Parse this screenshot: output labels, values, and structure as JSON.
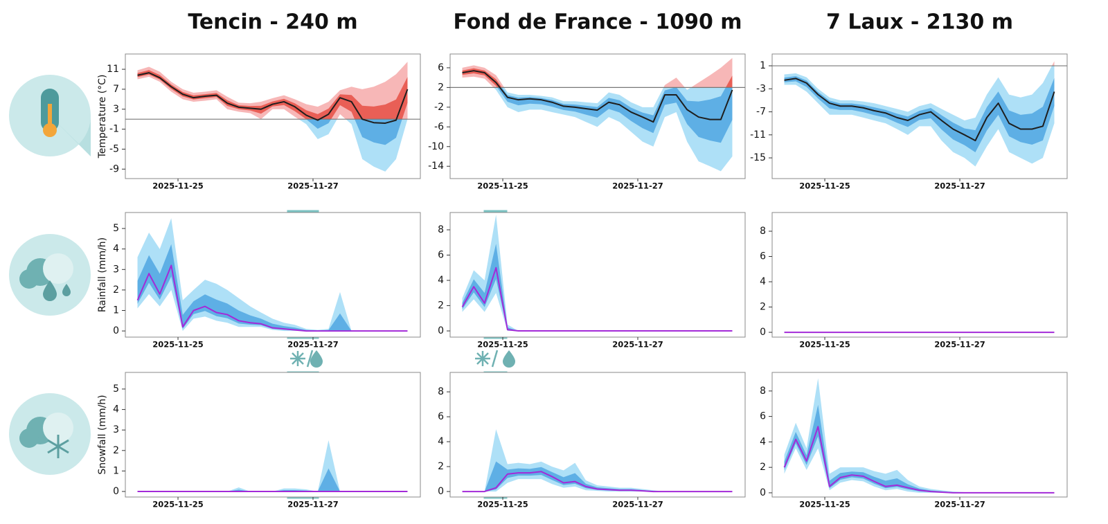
{
  "chart_data": [
    {
      "type": "line",
      "title": "Tencin - 240 m",
      "ylabel": "Temperature (°C)",
      "x": [
        24.4,
        24.57,
        24.73,
        24.9,
        25.07,
        25.23,
        25.4,
        25.57,
        25.73,
        25.9,
        26.07,
        26.23,
        26.4,
        26.57,
        26.73,
        26.9,
        27.07,
        27.23,
        27.4,
        27.57,
        27.73,
        27.9,
        28.07,
        28.23,
        28.4
      ],
      "median": [
        9.8,
        10.3,
        9.3,
        7.5,
        6,
        5.3,
        5.6,
        5.8,
        4.2,
        3.4,
        3.2,
        3,
        4,
        4.5,
        3.5,
        1.8,
        0.8,
        2,
        5.3,
        4.5,
        1,
        0.3,
        0.2,
        0.8,
        7
      ],
      "band_low": [
        9,
        9.5,
        8.5,
        6.5,
        5,
        4.5,
        4.7,
        5,
        3,
        2.5,
        2.2,
        1,
        3,
        3,
        1.5,
        0,
        -3,
        -2,
        2,
        0,
        -7,
        -8.5,
        -9.5,
        -7,
        1
      ],
      "band_high": [
        10.8,
        11.5,
        10.5,
        8.5,
        7,
        6.3,
        6.5,
        6.8,
        5.5,
        4.3,
        4.2,
        4.5,
        5.2,
        5.8,
        5,
        4,
        3.5,
        4.5,
        6.8,
        7.5,
        7,
        7.5,
        8.5,
        10,
        12.5
      ],
      "hline": 1,
      "xlim": [
        24.22,
        28.59
      ],
      "ylim": [
        -10.9,
        14.06
      ],
      "xticks": [
        {
          "value": 25,
          "label": "2025-11-25"
        },
        {
          "value": 27,
          "label": "2025-11-27"
        }
      ],
      "yticks": [
        11,
        7,
        3,
        -1,
        -5,
        -9
      ],
      "color": "#1e1e1e",
      "band_color": "#aee0f7",
      "inner_color": "#4aa3e0",
      "band_color_above": "#f7b7b7",
      "inner_color_above": "#e5483d"
    },
    {
      "type": "line",
      "title": "Fond de France - 1090 m",
      "x": [
        24.4,
        24.57,
        24.73,
        24.9,
        25.07,
        25.23,
        25.4,
        25.57,
        25.73,
        25.9,
        26.07,
        26.23,
        26.4,
        26.57,
        26.73,
        26.9,
        27.07,
        27.23,
        27.4,
        27.57,
        27.73,
        27.9,
        28.07,
        28.23,
        28.4
      ],
      "median": [
        5,
        5.4,
        5,
        3,
        0,
        -0.5,
        -0.3,
        -0.5,
        -1,
        -1.8,
        -2,
        -2.3,
        -2.6,
        -1,
        -1.5,
        -3,
        -4,
        -5,
        0.5,
        0.5,
        -2.5,
        -4,
        -4.5,
        -4.5,
        1.5
      ],
      "band_low": [
        4,
        4.2,
        3.8,
        1.5,
        -2,
        -3,
        -2.5,
        -2.5,
        -3,
        -3.5,
        -4,
        -5,
        -6,
        -4,
        -5,
        -7,
        -9,
        -10,
        -4,
        -3,
        -9,
        -13,
        -14,
        -15,
        -12
      ],
      "band_high": [
        6,
        6.5,
        6,
        4.5,
        1,
        0.5,
        0.5,
        0.3,
        0,
        -0.8,
        -0.8,
        -1,
        -1.2,
        1,
        0.5,
        -1,
        -2,
        -2,
        2.5,
        4,
        1.5,
        3,
        4.5,
        6,
        8
      ],
      "hline": 2,
      "xlim": [
        24.22,
        28.59
      ],
      "ylim": [
        -16.5,
        8.8
      ],
      "xticks": [
        {
          "value": 25,
          "label": "2025-11-25"
        },
        {
          "value": 27,
          "label": "2025-11-27"
        }
      ],
      "yticks": [
        6,
        2,
        -2,
        -6,
        -10,
        -14
      ],
      "color": "#1e1e1e",
      "band_color": "#aee0f7",
      "inner_color": "#4aa3e0",
      "band_color_above": "#f7b7b7",
      "inner_color_above": "#e5483d"
    },
    {
      "type": "line",
      "title": "7 Laux - 2130 m",
      "x": [
        24.4,
        24.57,
        24.73,
        24.9,
        25.07,
        25.23,
        25.4,
        25.57,
        25.73,
        25.9,
        26.07,
        26.23,
        26.4,
        26.57,
        26.73,
        26.9,
        27.07,
        27.23,
        27.4,
        27.57,
        27.73,
        27.9,
        28.07,
        28.23,
        28.4
      ],
      "median": [
        -1.5,
        -1.2,
        -2,
        -4,
        -5.5,
        -6,
        -6,
        -6.3,
        -6.8,
        -7.2,
        -8,
        -8.5,
        -7.5,
        -7,
        -8.5,
        -10,
        -11,
        -12,
        -8,
        -5.5,
        -9,
        -10,
        -10,
        -9.5,
        -3.5
      ],
      "band_low": [
        -2.3,
        -2.3,
        -3.5,
        -5.5,
        -7.5,
        -7.5,
        -7.5,
        -8,
        -8.5,
        -9,
        -10,
        -11,
        -9.5,
        -9.5,
        -12,
        -14,
        -15,
        -16.5,
        -13,
        -10,
        -14,
        -15,
        -16,
        -15,
        -9
      ],
      "band_high": [
        -0.5,
        -0.3,
        -1,
        -3,
        -4.5,
        -5,
        -5,
        -5.2,
        -5.5,
        -6,
        -6.5,
        -7,
        -6,
        -5.5,
        -6.5,
        -7.5,
        -8.5,
        -8,
        -4,
        -1,
        -4,
        -4.5,
        -4,
        -2,
        1.8
      ],
      "hline": 1,
      "xlim": [
        24.22,
        28.59
      ],
      "ylim": [
        -18.6,
        3.05
      ],
      "xticks": [
        {
          "value": 25,
          "label": "2025-11-25"
        },
        {
          "value": 27,
          "label": "2025-11-27"
        }
      ],
      "yticks": [
        1,
        -3,
        -7,
        -11,
        -15
      ],
      "color": "#1e1e1e",
      "band_color": "#aee0f7",
      "inner_color": "#4aa3e0",
      "band_color_above": "#f7b7b7",
      "inner_color_above": "#e5483d"
    },
    {
      "type": "line",
      "ylabel": "Rainfall (mm/h)",
      "x": [
        24.4,
        24.57,
        24.73,
        24.9,
        25.07,
        25.23,
        25.4,
        25.57,
        25.73,
        25.9,
        26.07,
        26.23,
        26.4,
        26.57,
        26.73,
        26.9,
        27.07,
        27.23,
        27.4,
        27.57,
        27.73,
        27.9,
        28.07,
        28.23,
        28.4
      ],
      "median": [
        1.5,
        2.8,
        1.8,
        3.2,
        0.2,
        1.0,
        1.2,
        0.9,
        0.8,
        0.5,
        0.4,
        0.35,
        0.15,
        0.1,
        0.05,
        0,
        0,
        0,
        0,
        0,
        0,
        0,
        0,
        0,
        0
      ],
      "band_low": [
        1.1,
        1.8,
        1.2,
        2,
        0,
        0.6,
        0.7,
        0.5,
        0.4,
        0.2,
        0.2,
        0.2,
        0.05,
        0,
        0,
        0,
        0,
        0,
        0,
        0,
        0,
        0,
        0,
        0,
        0
      ],
      "band_high": [
        3.6,
        4.8,
        4,
        5.5,
        1.5,
        2,
        2.5,
        2.3,
        2,
        1.6,
        1.2,
        0.9,
        0.6,
        0.4,
        0.3,
        0.1,
        0.05,
        0.1,
        1.9,
        0,
        0,
        0,
        0,
        0,
        0
      ],
      "xlim": [
        24.22,
        28.59
      ],
      "ylim": [
        -0.3,
        5.78
      ],
      "xticks": [
        {
          "value": 25,
          "label": "2025-11-25"
        },
        {
          "value": 27,
          "label": "2025-11-27"
        }
      ],
      "yticks": [
        0,
        1,
        2,
        3,
        4,
        5
      ],
      "color": "#a32ad8",
      "band_color": "#aee0f7",
      "inner_color": "#4aa3e0"
    },
    {
      "type": "line",
      "x": [
        24.4,
        24.57,
        24.73,
        24.9,
        25.07,
        25.23,
        25.4,
        25.57,
        25.73,
        25.9,
        26.07,
        26.23,
        26.4,
        26.57,
        26.73,
        26.9,
        27.07,
        27.23,
        27.4,
        27.57,
        27.73,
        27.9,
        28.07,
        28.23,
        28.4
      ],
      "median": [
        1.9,
        3.5,
        2.2,
        5,
        0.1,
        0,
        0,
        0,
        0,
        0,
        0,
        0,
        0,
        0,
        0,
        0,
        0,
        0,
        0,
        0,
        0,
        0,
        0,
        0,
        0
      ],
      "band_low": [
        1.5,
        2.5,
        1.5,
        3,
        0,
        0,
        0,
        0,
        0,
        0,
        0,
        0,
        0,
        0,
        0,
        0,
        0,
        0,
        0,
        0,
        0,
        0,
        0,
        0,
        0
      ],
      "band_high": [
        2.6,
        4.8,
        4,
        9.2,
        0.5,
        0,
        0,
        0,
        0,
        0,
        0,
        0,
        0,
        0,
        0,
        0,
        0,
        0,
        0,
        0,
        0,
        0,
        0,
        0,
        0
      ],
      "xlim": [
        24.22,
        28.59
      ],
      "ylim": [
        -0.49,
        9.37
      ],
      "xticks": [
        {
          "value": 25,
          "label": "2025-11-25"
        },
        {
          "value": 27,
          "label": "2025-11-27"
        }
      ],
      "yticks": [
        0,
        2,
        4,
        6,
        8
      ],
      "color": "#a32ad8",
      "band_color": "#aee0f7",
      "inner_color": "#4aa3e0"
    },
    {
      "type": "line",
      "x": [
        24.4,
        24.57,
        24.73,
        24.9,
        25.07,
        25.23,
        25.4,
        25.57,
        25.73,
        25.9,
        26.07,
        26.23,
        26.4,
        26.57,
        26.73,
        26.9,
        27.07,
        27.23,
        27.4,
        27.57,
        27.73,
        27.9,
        28.07,
        28.23,
        28.4
      ],
      "median": [
        0,
        0,
        0,
        0,
        0,
        0,
        0,
        0,
        0,
        0,
        0,
        0,
        0,
        0,
        0,
        0,
        0,
        0,
        0,
        0,
        0,
        0,
        0,
        0,
        0
      ],
      "xlim": [
        24.22,
        28.59
      ],
      "ylim": [
        -0.38,
        9.48
      ],
      "xticks": [
        {
          "value": 25,
          "label": "2025-11-25"
        },
        {
          "value": 27,
          "label": "2025-11-27"
        }
      ],
      "yticks": [
        0,
        2,
        4,
        6,
        8
      ],
      "color": "#a32ad8"
    },
    {
      "type": "line",
      "ylabel": "Snowfall (mm/h)",
      "x": [
        24.4,
        24.57,
        24.73,
        24.9,
        25.07,
        25.23,
        25.4,
        25.57,
        25.73,
        25.9,
        26.07,
        26.23,
        26.4,
        26.57,
        26.73,
        26.9,
        27.07,
        27.23,
        27.4,
        27.57,
        27.73,
        27.9,
        28.07,
        28.23,
        28.4
      ],
      "median": [
        0,
        0,
        0,
        0,
        0,
        0,
        0,
        0,
        0,
        0,
        0,
        0,
        0,
        0,
        0,
        0,
        0,
        0,
        0,
        0,
        0,
        0,
        0,
        0,
        0
      ],
      "band_low": [
        0,
        0,
        0,
        0,
        0,
        0,
        0,
        0,
        0,
        0,
        0,
        0,
        0,
        0,
        0,
        0,
        0,
        0,
        0,
        0,
        0,
        0,
        0,
        0,
        0
      ],
      "band_high": [
        0,
        0,
        0,
        0,
        0,
        0,
        0,
        0,
        0,
        0.2,
        0,
        0,
        0,
        0.15,
        0.15,
        0.1,
        0,
        2.5,
        0,
        0,
        0,
        0,
        0,
        0,
        0
      ],
      "xlim": [
        24.22,
        28.59
      ],
      "ylim": [
        -0.27,
        5.81
      ],
      "xticks": [
        {
          "value": 25,
          "label": "2025-11-25"
        },
        {
          "value": 27,
          "label": "2025-11-27"
        }
      ],
      "yticks": [
        0,
        1,
        2,
        3,
        4,
        5
      ],
      "color": "#a32ad8",
      "band_color": "#aee0f7",
      "inner_color": "#4aa3e0"
    },
    {
      "type": "line",
      "x": [
        24.4,
        24.57,
        24.73,
        24.9,
        25.07,
        25.23,
        25.4,
        25.57,
        25.73,
        25.9,
        26.07,
        26.23,
        26.4,
        26.57,
        26.73,
        26.9,
        27.07,
        27.23,
        27.4,
        27.57,
        27.73,
        27.9,
        28.07,
        28.23,
        28.4
      ],
      "median": [
        0,
        0,
        0,
        0.3,
        1.4,
        1.5,
        1.5,
        1.6,
        1.2,
        0.7,
        0.8,
        0.4,
        0.2,
        0.15,
        0.1,
        0.1,
        0.05,
        0,
        0,
        0,
        0,
        0,
        0,
        0,
        0
      ],
      "band_low": [
        0,
        0,
        0,
        0,
        0.7,
        1,
        1,
        1,
        0.6,
        0.3,
        0.4,
        0.1,
        0.05,
        0,
        0,
        0,
        0,
        0,
        0,
        0,
        0,
        0,
        0,
        0,
        0
      ],
      "band_high": [
        0,
        0,
        0,
        5,
        2.2,
        2.3,
        2.2,
        2.4,
        2,
        1.7,
        2.3,
        0.9,
        0.5,
        0.4,
        0.3,
        0.3,
        0.2,
        0.1,
        0,
        0,
        0,
        0,
        0,
        0,
        0
      ],
      "xlim": [
        24.22,
        28.59
      ],
      "ylim": [
        -0.44,
        9.56
      ],
      "xticks": [
        {
          "value": 25,
          "label": "2025-11-25"
        },
        {
          "value": 27,
          "label": "2025-11-27"
        }
      ],
      "yticks": [
        0,
        2,
        4,
        6,
        8
      ],
      "color": "#a32ad8",
      "band_color": "#aee0f7",
      "inner_color": "#4aa3e0"
    },
    {
      "type": "line",
      "x": [
        24.4,
        24.57,
        24.73,
        24.9,
        25.07,
        25.23,
        25.4,
        25.57,
        25.73,
        25.9,
        26.07,
        26.23,
        26.4,
        26.57,
        26.73,
        26.9,
        27.07,
        27.23,
        27.4,
        27.57,
        27.73,
        27.9,
        28.07,
        28.23,
        28.4
      ],
      "median": [
        2,
        4.2,
        2.5,
        5.2,
        0.5,
        1.2,
        1.4,
        1.3,
        0.9,
        0.5,
        0.6,
        0.4,
        0.2,
        0.1,
        0.05,
        0,
        0,
        0,
        0,
        0,
        0,
        0,
        0,
        0,
        0
      ],
      "band_low": [
        1.5,
        3.5,
        1.8,
        3.5,
        0.2,
        0.8,
        1,
        0.9,
        0.5,
        0.2,
        0.3,
        0.1,
        0,
        0,
        0,
        0,
        0,
        0,
        0,
        0,
        0,
        0,
        0,
        0,
        0
      ],
      "band_high": [
        3,
        5.5,
        3.5,
        9,
        1.5,
        2,
        2,
        2,
        1.7,
        1.5,
        1.8,
        1,
        0.5,
        0.3,
        0.2,
        0.1,
        0.05,
        0,
        0,
        0,
        0,
        0,
        0,
        0,
        0
      ],
      "xlim": [
        24.22,
        28.59
      ],
      "ylim": [
        -0.33,
        9.46
      ],
      "xticks": [
        {
          "value": 25,
          "label": "2025-11-25"
        },
        {
          "value": 27,
          "label": "2025-11-27"
        }
      ],
      "yticks": [
        0,
        2,
        4,
        6,
        8
      ],
      "color": "#a32ad8",
      "band_color": "#aee0f7",
      "inner_color": "#4aa3e0"
    }
  ]
}
